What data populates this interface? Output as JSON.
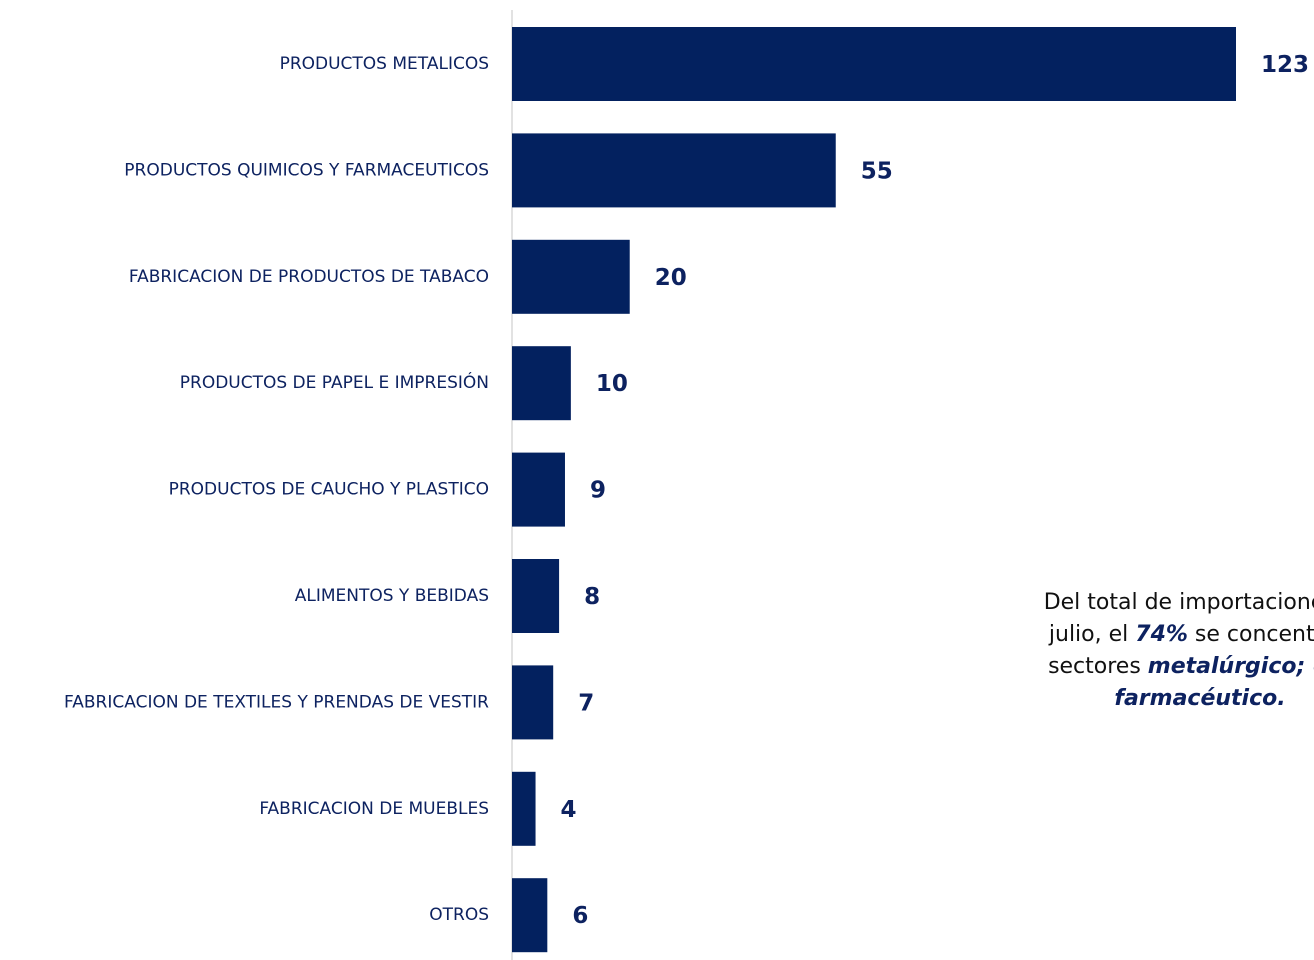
{
  "chart_data": {
    "type": "bar",
    "orientation": "horizontal",
    "categories": [
      "PRODUCTOS METALICOS",
      "PRODUCTOS QUIMICOS Y FARMACEUTICOS",
      "FABRICACION DE PRODUCTOS DE TABACO",
      "PRODUCTOS DE PAPEL E IMPRESIÓN",
      "PRODUCTOS DE CAUCHO Y PLASTICO",
      "ALIMENTOS Y BEBIDAS",
      "FABRICACION DE TEXTILES Y PRENDAS DE VESTIR",
      "FABRICACION DE MUEBLES",
      "OTROS"
    ],
    "values": [
      123,
      55,
      20,
      10,
      9,
      8,
      7,
      4,
      6
    ],
    "value_labels": [
      "123",
      "55",
      "20",
      "10",
      "9",
      "8",
      "7",
      "4",
      "6"
    ],
    "title": "",
    "xlabel": "",
    "ylabel": "",
    "xlim": [
      0,
      123
    ],
    "grid": false,
    "legend": "none",
    "colors": {
      "bar": "#03215f",
      "category_text": "#0d2260",
      "value_text": "#0d2260",
      "axis_line": "#d9d9d9"
    }
  },
  "annotation": {
    "line1": "Del total de importaciones a",
    "line2_pre": "julio, el ",
    "line2_em": "74%",
    "line2_post": " se concentran",
    "line3_pre": "sectores ",
    "line3_em": "metalúrgico; quí",
    "line4_em": "farmacéutico."
  }
}
